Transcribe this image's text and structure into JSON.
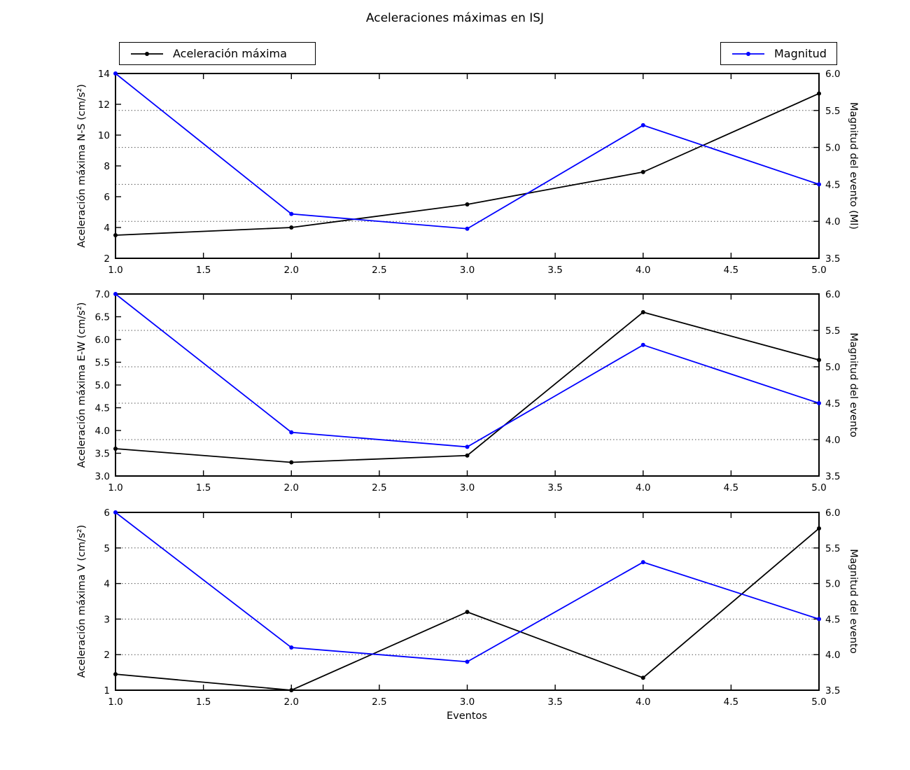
{
  "title": "Aceleraciones máximas en ISJ",
  "xlabel": "Eventos",
  "legend": {
    "accel_label": "Aceleración máxima",
    "magnitude_label": "Magnitud"
  },
  "colors": {
    "accel": "#000000",
    "magnitude": "#0000ff",
    "grid": "#555555"
  },
  "chart_data": [
    {
      "type": "line",
      "ylabel_left": "Aceleración máxima N-S (cm/s²)",
      "ylabel_right": "Magnitud del evento (Ml)",
      "x": [
        1.0,
        2.0,
        3.0,
        4.0,
        5.0
      ],
      "xlim": [
        1.0,
        5.0
      ],
      "xtick_labels": [
        "1.0",
        "1.5",
        "2.0",
        "2.5",
        "3.0",
        "3.5",
        "4.0",
        "4.5",
        "5.0"
      ],
      "ylim_left": [
        2,
        14
      ],
      "ytick_labels_left": [
        "2",
        "4",
        "6",
        "8",
        "10",
        "12",
        "14"
      ],
      "ylim_right": [
        3.5,
        6.0
      ],
      "ytick_labels_right": [
        "3.5",
        "4.0",
        "4.5",
        "5.0",
        "5.5",
        "6.0"
      ],
      "grid_at_right_ticks": [
        4.0,
        4.5,
        5.0,
        5.5
      ],
      "series": [
        {
          "name": "Aceleración máxima",
          "axis": "left",
          "color": "#000000",
          "values": [
            3.5,
            4.0,
            5.5,
            7.6,
            12.7
          ]
        },
        {
          "name": "Magnitud",
          "axis": "right",
          "color": "#0000ff",
          "values": [
            6.0,
            4.1,
            3.9,
            5.3,
            4.5
          ]
        }
      ]
    },
    {
      "type": "line",
      "ylabel_left": "Aceleración máxima E-W (cm/s²)",
      "ylabel_right": "Magnitud del evento",
      "x": [
        1.0,
        2.0,
        3.0,
        4.0,
        5.0
      ],
      "xlim": [
        1.0,
        5.0
      ],
      "xtick_labels": [
        "1.0",
        "1.5",
        "2.0",
        "2.5",
        "3.0",
        "3.5",
        "4.0",
        "4.5",
        "5.0"
      ],
      "ylim_left": [
        3.0,
        7.0
      ],
      "ytick_labels_left": [
        "3.0",
        "3.5",
        "4.0",
        "4.5",
        "5.0",
        "5.5",
        "6.0",
        "6.5",
        "7.0"
      ],
      "ylim_right": [
        3.5,
        6.0
      ],
      "ytick_labels_right": [
        "3.5",
        "4.0",
        "4.5",
        "5.0",
        "5.5",
        "6.0"
      ],
      "grid_at_right_ticks": [
        4.0,
        4.5,
        5.0,
        5.5
      ],
      "series": [
        {
          "name": "Aceleración máxima",
          "axis": "left",
          "color": "#000000",
          "values": [
            3.6,
            3.3,
            3.45,
            6.6,
            5.55
          ]
        },
        {
          "name": "Magnitud",
          "axis": "right",
          "color": "#0000ff",
          "values": [
            6.0,
            4.1,
            3.9,
            5.3,
            4.5
          ]
        }
      ]
    },
    {
      "type": "line",
      "ylabel_left": "Aceleración máxima V (cm/s²)",
      "ylabel_right": "Magnitud del evento",
      "x": [
        1.0,
        2.0,
        3.0,
        4.0,
        5.0
      ],
      "xlim": [
        1.0,
        5.0
      ],
      "xtick_labels": [
        "1.0",
        "1.5",
        "2.0",
        "2.5",
        "3.0",
        "3.5",
        "4.0",
        "4.5",
        "5.0"
      ],
      "ylim_left": [
        1,
        6
      ],
      "ytick_labels_left": [
        "1",
        "2",
        "3",
        "4",
        "5",
        "6"
      ],
      "ylim_right": [
        3.5,
        6.0
      ],
      "ytick_labels_right": [
        "3.5",
        "4.0",
        "4.5",
        "5.0",
        "5.5",
        "6.0"
      ],
      "grid_at_right_ticks": [
        4.0,
        4.5,
        5.0,
        5.5
      ],
      "series": [
        {
          "name": "Aceleración máxima",
          "axis": "left",
          "color": "#000000",
          "values": [
            1.45,
            1.0,
            3.2,
            1.35,
            5.55
          ]
        },
        {
          "name": "Magnitud",
          "axis": "right",
          "color": "#0000ff",
          "values": [
            6.0,
            4.1,
            3.9,
            5.3,
            4.5
          ]
        }
      ]
    }
  ]
}
